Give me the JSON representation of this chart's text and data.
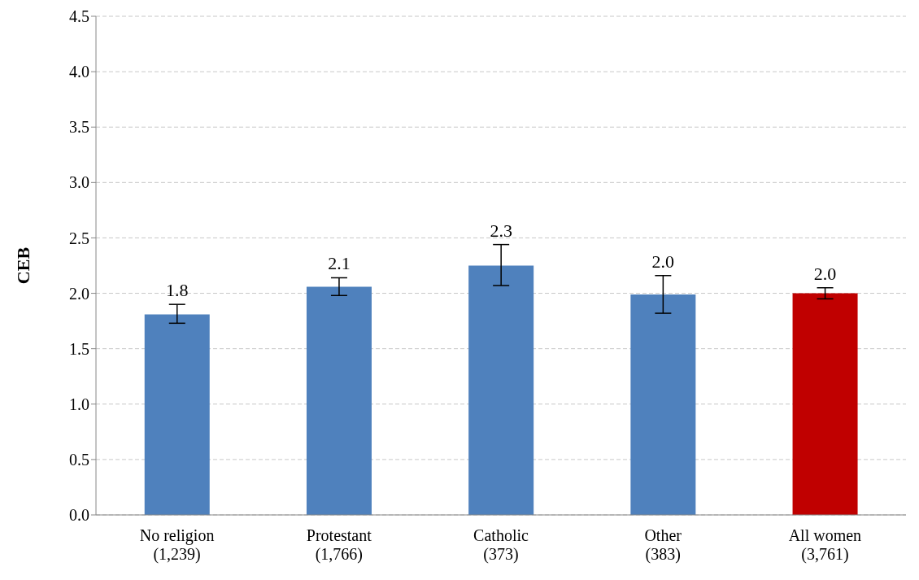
{
  "chart_data": {
    "type": "bar",
    "ylabel": "CEB",
    "categories": [
      "No religion\n(1,239)",
      "Protestant\n(1,766)",
      "Catholic\n(373)",
      "Other\n(383)",
      "All women\n(3,761)"
    ],
    "values": [
      1.81,
      2.06,
      2.25,
      1.99,
      2.0
    ],
    "colors": [
      "#4f81bd",
      "#4f81bd",
      "#4f81bd",
      "#4f81bd",
      "#c00000"
    ],
    "errors": [
      [
        1.73,
        1.9
      ],
      [
        1.98,
        2.14
      ],
      [
        2.07,
        2.44
      ],
      [
        1.82,
        2.16
      ],
      [
        1.95,
        2.05
      ]
    ],
    "value_labels": [
      "1.8",
      "2.1",
      "2.3",
      "2.0",
      "2.0"
    ],
    "ylim": [
      0,
      4.5
    ],
    "yticks": [
      {
        "value": 0,
        "label": "0.0"
      },
      {
        "value": 0.5,
        "label": "0.5"
      },
      {
        "value": 1,
        "label": "1.0"
      },
      {
        "value": 1.5,
        "label": "1.5"
      },
      {
        "value": 2,
        "label": "2.0"
      },
      {
        "value": 2.5,
        "label": "2.5"
      },
      {
        "value": 3,
        "label": "3.0"
      },
      {
        "value": 3.5,
        "label": "3.5"
      },
      {
        "value": 4,
        "label": "4.0"
      },
      {
        "value": 4.5,
        "label": "4.5"
      }
    ],
    "grid": "y"
  }
}
